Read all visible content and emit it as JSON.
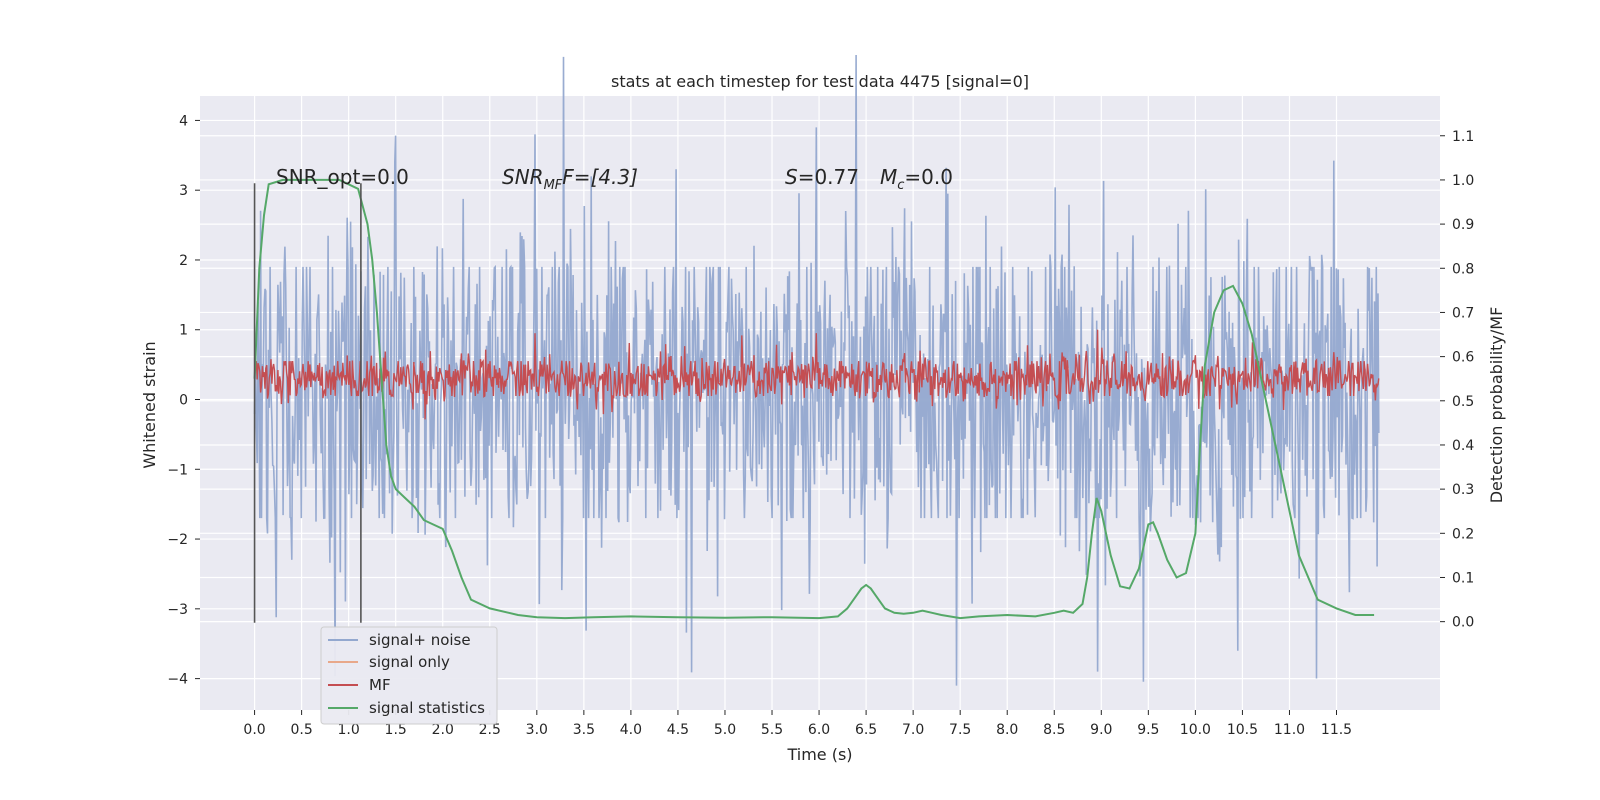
{
  "chart_data": {
    "type": "line",
    "title": "stats at each timestep for test data 4475 [signal=0]",
    "xlabel": "Time (s)",
    "ylabel_left": "Whitened strain",
    "ylabel_right": "Detection probability/MF",
    "xlim": [
      -0.58,
      12.6
    ],
    "ylim_left": [
      -4.45,
      4.35
    ],
    "ylim_right": [
      -0.2,
      1.19
    ],
    "x_ticks": [
      "0.0",
      "0.5",
      "1.0",
      "1.5",
      "2.0",
      "2.5",
      "3.0",
      "3.5",
      "4.0",
      "4.5",
      "5.0",
      "5.5",
      "6.0",
      "6.5",
      "7.0",
      "7.5",
      "8.0",
      "8.5",
      "9.0",
      "9.5",
      "10.0",
      "10.5",
      "11.0",
      "11.5"
    ],
    "y_ticks_left": [
      "4",
      "3",
      "2",
      "1",
      "0",
      "−1",
      "−2",
      "−3",
      "−4"
    ],
    "y_ticks_right": [
      "1.1",
      "1.0",
      "0.9",
      "0.8",
      "0.7",
      "0.6",
      "0.5",
      "0.4",
      "0.3",
      "0.2",
      "0.1",
      "0.0"
    ],
    "grid": true,
    "legend_position": "lower-left",
    "annotations": {
      "snr_opt": "SNR_opt=0.0",
      "snr_mf_prefix": "SNR",
      "snr_mf_sub": "MF",
      "snr_mf_value": "F=[4.3]",
      "s_prefix": "S",
      "s_value": "=0.77",
      "mc_prefix": "M",
      "mc_sub": "c",
      "mc_value": "=0.0"
    },
    "vlines_x": [
      0.0,
      1.13
    ],
    "series": [
      {
        "name": "signal+ noise",
        "color": "#93a8cf",
        "axis": "left",
        "x_range": [
          0.0,
          11.95
        ],
        "band_left": [
          -1.7,
          1.9
        ],
        "peak_values_left": [
          3.4,
          3.8,
          3.3,
          3.9,
          -4.1,
          -3.9,
          -3.6
        ]
      },
      {
        "name": "signal only",
        "color": "#e8a88a",
        "axis": "left",
        "values": []
      },
      {
        "name": "MF",
        "color": "#c44e52",
        "axis": "left",
        "x_range": [
          0.0,
          11.95
        ],
        "band_left": [
          0.05,
          0.55
        ],
        "peak_values_left": [
          0.95,
          0.95,
          1.0
        ]
      },
      {
        "name": "signal statistics",
        "color": "#55a868",
        "axis": "right",
        "x": [
          0.0,
          0.05,
          0.1,
          0.15,
          0.3,
          0.5,
          0.7,
          0.9,
          1.0,
          1.1,
          1.2,
          1.25,
          1.3,
          1.35,
          1.4,
          1.45,
          1.5,
          1.6,
          1.7,
          1.8,
          1.9,
          2.0,
          2.1,
          2.2,
          2.3,
          2.5,
          2.8,
          3.0,
          3.3,
          3.6,
          4.0,
          4.5,
          5.0,
          5.5,
          6.0,
          6.2,
          6.3,
          6.4,
          6.45,
          6.5,
          6.55,
          6.6,
          6.7,
          6.8,
          6.9,
          7.0,
          7.1,
          7.2,
          7.3,
          7.5,
          7.7,
          8.0,
          8.3,
          8.5,
          8.6,
          8.7,
          8.8,
          8.85,
          8.9,
          8.95,
          9.0,
          9.1,
          9.2,
          9.3,
          9.4,
          9.5,
          9.55,
          9.6,
          9.7,
          9.8,
          9.9,
          10.0,
          10.05,
          10.1,
          10.2,
          10.3,
          10.4,
          10.5,
          10.6,
          10.7,
          10.8,
          10.9,
          11.0,
          11.1,
          11.2,
          11.3,
          11.5,
          11.7,
          11.9
        ],
        "values": [
          0.55,
          0.8,
          0.92,
          0.99,
          1.0,
          1.0,
          1.0,
          1.0,
          0.99,
          0.98,
          0.9,
          0.82,
          0.7,
          0.55,
          0.4,
          0.33,
          0.3,
          0.28,
          0.26,
          0.23,
          0.22,
          0.21,
          0.16,
          0.1,
          0.05,
          0.03,
          0.015,
          0.01,
          0.008,
          0.01,
          0.012,
          0.01,
          0.009,
          0.01,
          0.008,
          0.012,
          0.03,
          0.06,
          0.075,
          0.083,
          0.075,
          0.06,
          0.03,
          0.02,
          0.018,
          0.02,
          0.025,
          0.02,
          0.015,
          0.008,
          0.012,
          0.015,
          0.012,
          0.02,
          0.025,
          0.02,
          0.04,
          0.1,
          0.2,
          0.28,
          0.25,
          0.15,
          0.08,
          0.075,
          0.12,
          0.22,
          0.225,
          0.2,
          0.14,
          0.1,
          0.11,
          0.2,
          0.4,
          0.58,
          0.7,
          0.75,
          0.76,
          0.72,
          0.65,
          0.55,
          0.45,
          0.35,
          0.25,
          0.15,
          0.1,
          0.05,
          0.03,
          0.015,
          0.015
        ]
      }
    ]
  }
}
